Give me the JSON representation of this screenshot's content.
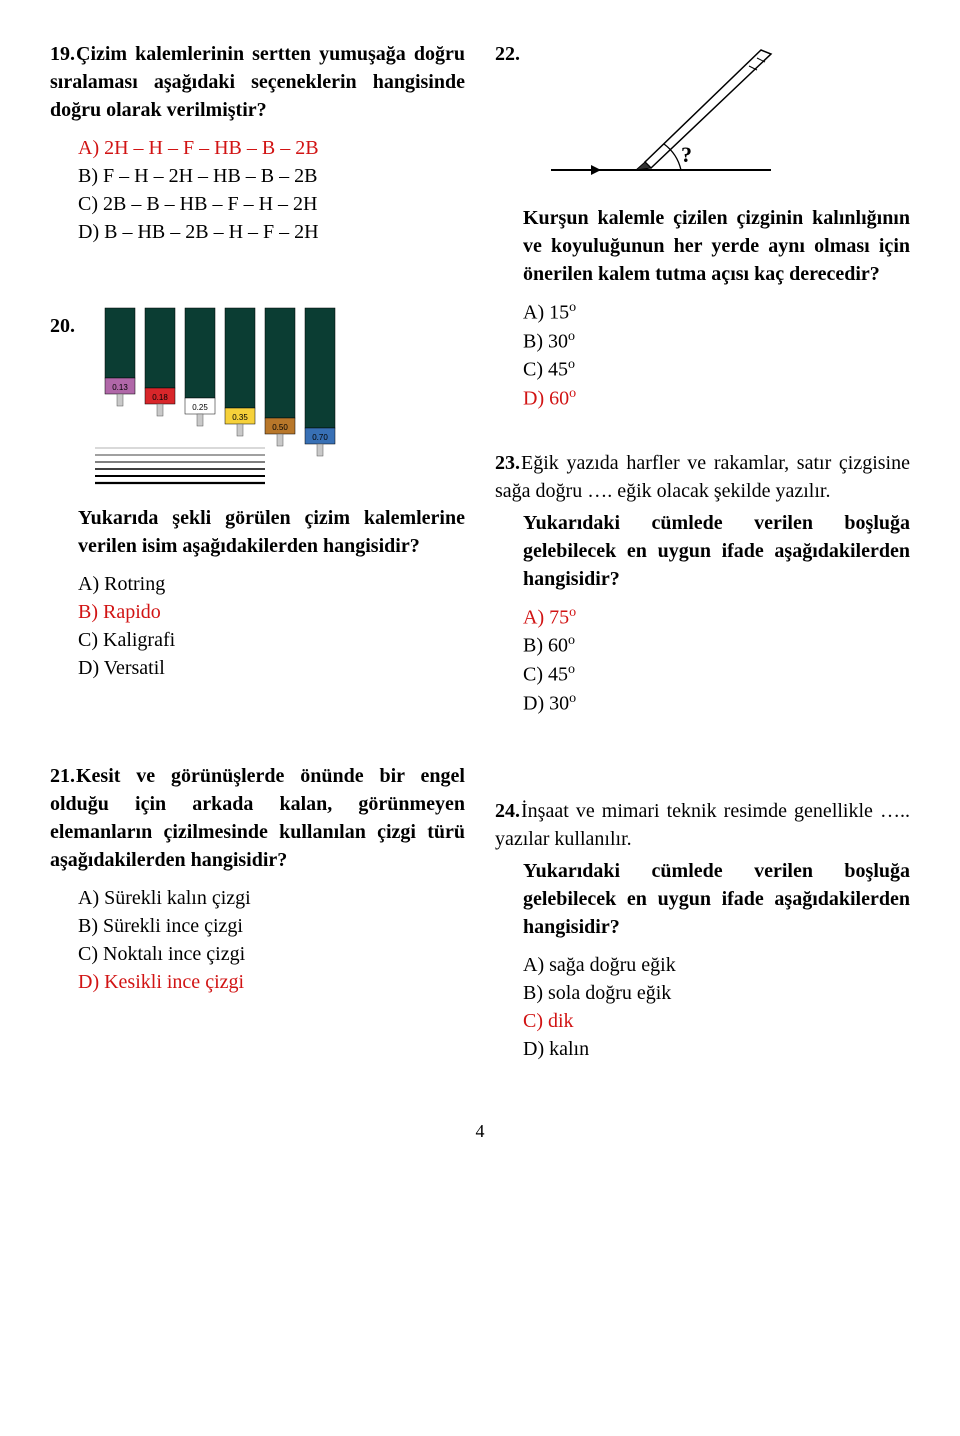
{
  "page_number": "4",
  "left": {
    "q19": {
      "num": "19.",
      "text": "Çizim kalemlerinin sertten yumuşağa doğru sıralaması aşağıdaki seçeneklerin hangisinde doğru olarak verilmiştir?",
      "A": "A) 2H – H – F – HB – B – 2B",
      "B": "B) F – H – 2H – HB – B – 2B",
      "C": "C) 2B – B – HB – F – H – 2H",
      "D": "D) B – HB – 2B – H – F – 2H"
    },
    "q20": {
      "num": "20.",
      "sub": "Yukarıda şekli görülen çizim kalemlerine verilen isim aşağıdakilerden hangisidir?",
      "A": "A) Rotring",
      "B": "B) Rapido",
      "C": "C) Kaligrafi",
      "D": "D) Versatil",
      "pens": [
        {
          "body": "#0b3d33",
          "ring": "#b067a8",
          "label": "0.13"
        },
        {
          "body": "#0b3d33",
          "ring": "#d8262a",
          "label": "0.18"
        },
        {
          "body": "#0b3d33",
          "ring": "#ffffff",
          "label": "0.25"
        },
        {
          "body": "#0b3d33",
          "ring": "#f6d13a",
          "label": "0.35"
        },
        {
          "body": "#0b3d33",
          "ring": "#b8772a",
          "label": "0.50"
        },
        {
          "body": "#0b3d33",
          "ring": "#3870b5",
          "label": "0.70"
        }
      ]
    },
    "q21": {
      "num": "21.",
      "text": "Kesit ve görünüşlerde önünde bir engel olduğu için arkada kalan, görünmeyen elemanların çizilmesinde kullanılan çizgi türü aşağıdakilerden hangisidir?",
      "A": "A) Sürekli kalın çizgi",
      "B": "B) Sürekli ince çizgi",
      "C": "C) Noktalı ince çizgi",
      "D": "D) Kesikli ince çizgi"
    }
  },
  "right": {
    "q22": {
      "num": "22.",
      "sub": "Kurşun kalemle çizilen çizginin kalınlığının ve koyuluğunun her yerde aynı olması için önerilen kalem tutma açısı kaç derecedir?",
      "A_pre": "A) 15",
      "B_pre": "B) 30",
      "C_pre": "C) 45",
      "D_pre": "D) 60",
      "deg": "o",
      "mark": "?"
    },
    "q23": {
      "num": "23.",
      "text": "Eğik yazıda harfler ve rakamlar, satır çizgisine sağa doğru …. eğik olacak şekilde yazılır.",
      "sub": "Yukarıdaki cümlede verilen boşluğa gelebilecek en uygun ifade aşağıdakilerden hangisidir?",
      "A_pre": "A) 75",
      "B_pre": "B) 60",
      "C_pre": "C) 45",
      "D_pre": "D) 30",
      "deg": "o"
    },
    "q24": {
      "num": "24.",
      "text": "İnşaat ve mimari teknik resimde genellikle ….. yazılar kullanılır.",
      "sub": "Yukarıdaki cümlede verilen boşluğa gelebilecek en uygun ifade aşağıdakilerden hangisidir?",
      "A": "A) sağa doğru eğik",
      "B": "B) sola doğru eğik",
      "C": "C) dik",
      "D": "D) kalın"
    }
  }
}
